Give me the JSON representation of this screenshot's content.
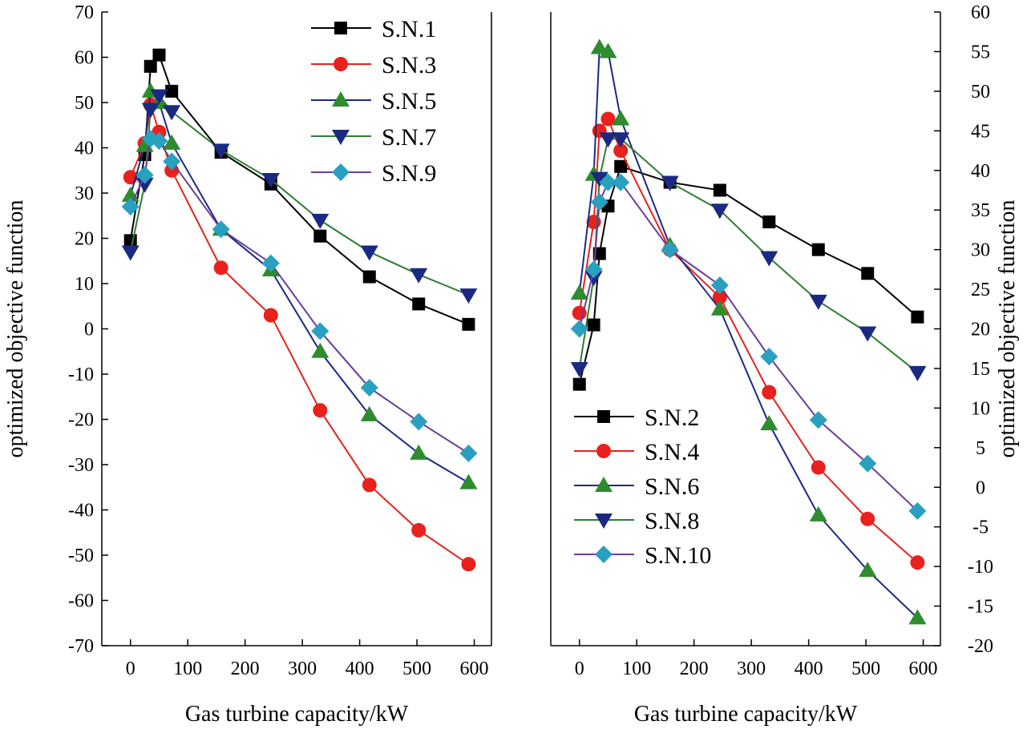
{
  "chart_data": [
    {
      "type": "line",
      "xlabel": "Gas turbine capacity/kW",
      "ylabel": "optimized objective function",
      "xlim": [
        -50,
        630
      ],
      "ylim": [
        -70,
        70
      ],
      "xticks": [
        0,
        100,
        200,
        300,
        400,
        500,
        600
      ],
      "yticks": [
        -70,
        -60,
        -50,
        -40,
        -30,
        -20,
        -10,
        0,
        10,
        20,
        30,
        40,
        50,
        60,
        70
      ],
      "y_axis_side": "left",
      "legend": "top-right",
      "series": [
        {
          "name": "S.N.1",
          "color": "#000000",
          "marker": "square",
          "x": [
            0,
            25,
            35,
            50,
            72,
            158,
            245,
            331,
            417,
            503,
            590
          ],
          "y": [
            19.5,
            38.5,
            58,
            60.5,
            52.5,
            39,
            32,
            20.5,
            11.5,
            5.5,
            1
          ]
        },
        {
          "name": "S.N.3",
          "color": "#e8211c",
          "marker": "circle",
          "x": [
            0,
            25,
            35,
            50,
            72,
            158,
            245,
            331,
            417,
            503,
            590
          ],
          "y": [
            33.5,
            41,
            49.5,
            43.5,
            35,
            13.5,
            3,
            -18,
            -34.5,
            -44.5,
            -52
          ]
        },
        {
          "name": "S.N.5",
          "color": "#1a2a82",
          "line_color": "#1a2a82",
          "marker_color": "#2e8b2e",
          "marker": "triangle-up",
          "x": [
            0,
            25,
            35,
            50,
            72,
            158,
            245,
            331,
            417,
            503,
            590
          ],
          "y": [
            29.5,
            40.5,
            52.5,
            50,
            41,
            22,
            13,
            -5,
            -19,
            -27.5,
            -34
          ]
        },
        {
          "name": "S.N.7",
          "color": "#1a2a82",
          "line_color": "#2e7d32",
          "marker_color": "#1a2a82",
          "marker": "triangle-down",
          "x": [
            0,
            25,
            35,
            50,
            72,
            158,
            245,
            331,
            417,
            503,
            590
          ],
          "y": [
            17,
            32,
            48.5,
            51.5,
            48,
            39.5,
            33,
            24,
            17,
            12,
            7.5
          ]
        },
        {
          "name": "S.N.9",
          "color": "#2aa0c0",
          "line_color": "#6a3d9a",
          "marker_color": "#2aa0c0",
          "marker": "diamond",
          "x": [
            0,
            25,
            35,
            50,
            72,
            158,
            245,
            331,
            417,
            503,
            590
          ],
          "y": [
            27,
            34,
            42,
            41.5,
            37,
            22,
            14.5,
            -0.5,
            -13,
            -20.5,
            -27.5
          ]
        }
      ]
    },
    {
      "type": "line",
      "xlabel": "Gas turbine capacity/kW",
      "ylabel": "optimized objective function",
      "xlim": [
        -50,
        630
      ],
      "ylim": [
        -20,
        60
      ],
      "xticks": [
        0,
        100,
        200,
        300,
        400,
        500,
        600
      ],
      "yticks": [
        -20,
        -15,
        -10,
        -5,
        0,
        5,
        10,
        15,
        20,
        25,
        30,
        35,
        40,
        45,
        50,
        55,
        60
      ],
      "y_axis_side": "right",
      "legend": "bottom-left",
      "series": [
        {
          "name": "S.N.2",
          "color": "#000000",
          "marker": "square",
          "x": [
            0,
            25,
            35,
            50,
            72,
            158,
            245,
            331,
            417,
            503,
            590
          ],
          "y": [
            13,
            20.5,
            29.5,
            35.5,
            40.5,
            38.5,
            37.5,
            33.5,
            30,
            27,
            21.5
          ]
        },
        {
          "name": "S.N.4",
          "color": "#e8211c",
          "marker": "circle",
          "x": [
            0,
            25,
            35,
            50,
            72,
            158,
            245,
            331,
            417,
            503,
            590
          ],
          "y": [
            22,
            33.5,
            45,
            46.5,
            42.5,
            30,
            24,
            12,
            2.5,
            -4,
            -9.5
          ]
        },
        {
          "name": "S.N.6",
          "color": "#1a2a82",
          "line_color": "#1a2a82",
          "marker_color": "#2e8b2e",
          "marker": "triangle-up",
          "x": [
            0,
            25,
            35,
            50,
            72,
            158,
            245,
            331,
            417,
            503,
            590
          ],
          "y": [
            24.5,
            39.5,
            55.5,
            55,
            46.5,
            30.5,
            22.5,
            8,
            -3.5,
            -10.5,
            -16.5
          ]
        },
        {
          "name": "S.N.8",
          "color": "#1a2a82",
          "line_color": "#2e7d32",
          "marker_color": "#1a2a82",
          "marker": "triangle-down",
          "x": [
            0,
            25,
            35,
            50,
            72,
            158,
            245,
            331,
            417,
            503,
            590
          ],
          "y": [
            15,
            26.5,
            39,
            44,
            44,
            38.5,
            35,
            29,
            23.5,
            19.5,
            14.5
          ]
        },
        {
          "name": "S.N.10",
          "color": "#2aa0c0",
          "line_color": "#6a3d9a",
          "marker_color": "#2aa0c0",
          "marker": "diamond",
          "x": [
            0,
            25,
            35,
            50,
            72,
            158,
            245,
            331,
            417,
            503,
            590
          ],
          "y": [
            20,
            27.5,
            36,
            38.5,
            38.5,
            30,
            25.5,
            16.5,
            8.5,
            3,
            -3
          ]
        }
      ]
    }
  ]
}
